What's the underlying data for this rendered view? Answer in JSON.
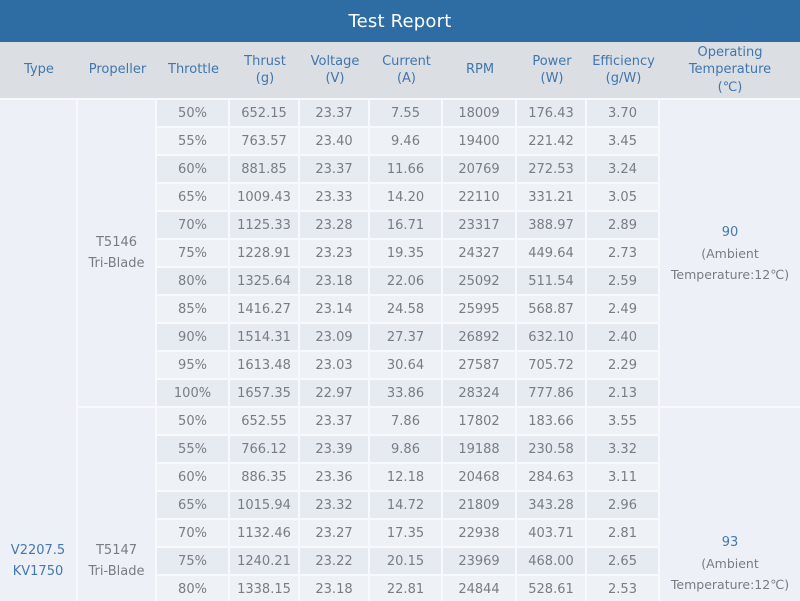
{
  "colors": {
    "title_bar_bg": "#2e6da4",
    "title_text": "#ffffff",
    "header_bg": "#dbdfe4",
    "header_text": "#4076ac",
    "row_dark": "#e6eaf1",
    "row_light": "#eef2f7",
    "merged_bg": "#edf0f6",
    "grid_line": "#f7f9fc",
    "value_text": "#797d83",
    "accent_text": "#4478b0"
  },
  "chart_data": {
    "type": "table",
    "title": "Test Report",
    "columns": [
      {
        "id": "type",
        "label": "Type"
      },
      {
        "id": "propeller",
        "label": "Propeller"
      },
      {
        "id": "throttle",
        "label": "Throttle"
      },
      {
        "id": "thrust",
        "label": "Thrust\n(g)"
      },
      {
        "id": "voltage",
        "label": "Voltage\n(V)"
      },
      {
        "id": "current",
        "label": "Current\n(A)"
      },
      {
        "id": "rpm",
        "label": "RPM"
      },
      {
        "id": "power",
        "label": "Power\n(W)"
      },
      {
        "id": "efficiency",
        "label": "Efficiency\n(g/W)"
      },
      {
        "id": "operating_temperature",
        "label": "Operating\nTemperature\n(℃)"
      }
    ],
    "motor_type": "V2207.5\nKV1750",
    "groups": [
      {
        "propeller": "T5146\nTri-Blade",
        "operating_temperature_value": "90",
        "operating_temperature_note": "(Ambient\nTemperature:12℃)",
        "rows": [
          [
            "50%",
            "652.15",
            "23.37",
            "7.55",
            "18009",
            "176.43",
            "3.70"
          ],
          [
            "55%",
            "763.57",
            "23.40",
            "9.46",
            "19400",
            "221.42",
            "3.45"
          ],
          [
            "60%",
            "881.85",
            "23.37",
            "11.66",
            "20769",
            "272.53",
            "3.24"
          ],
          [
            "65%",
            "1009.43",
            "23.33",
            "14.20",
            "22110",
            "331.21",
            "3.05"
          ],
          [
            "70%",
            "1125.33",
            "23.28",
            "16.71",
            "23317",
            "388.97",
            "2.89"
          ],
          [
            "75%",
            "1228.91",
            "23.23",
            "19.35",
            "24327",
            "449.64",
            "2.73"
          ],
          [
            "80%",
            "1325.64",
            "23.18",
            "22.06",
            "25092",
            "511.54",
            "2.59"
          ],
          [
            "85%",
            "1416.27",
            "23.14",
            "24.58",
            "25995",
            "568.87",
            "2.49"
          ],
          [
            "90%",
            "1514.31",
            "23.09",
            "27.37",
            "26892",
            "632.10",
            "2.40"
          ],
          [
            "95%",
            "1613.48",
            "23.03",
            "30.64",
            "27587",
            "705.72",
            "2.29"
          ],
          [
            "100%",
            "1657.35",
            "22.97",
            "33.86",
            "28324",
            "777.86",
            "2.13"
          ]
        ]
      },
      {
        "propeller": "T5147\nTri-Blade",
        "operating_temperature_value": "93",
        "operating_temperature_note": "(Ambient\nTemperature:12℃)",
        "rows": [
          [
            "50%",
            "652.55",
            "23.37",
            "7.86",
            "17802",
            "183.66",
            "3.55"
          ],
          [
            "55%",
            "766.12",
            "23.39",
            "9.86",
            "19188",
            "230.58",
            "3.32"
          ],
          [
            "60%",
            "886.35",
            "23.36",
            "12.18",
            "20468",
            "284.63",
            "3.11"
          ],
          [
            "65%",
            "1015.94",
            "23.32",
            "14.72",
            "21809",
            "343.28",
            "2.96"
          ],
          [
            "70%",
            "1132.46",
            "23.27",
            "17.35",
            "22938",
            "403.71",
            "2.81"
          ],
          [
            "75%",
            "1240.21",
            "23.22",
            "20.15",
            "23969",
            "468.00",
            "2.65"
          ],
          [
            "80%",
            "1338.15",
            "23.18",
            "22.81",
            "24844",
            "528.61",
            "2.53"
          ]
        ]
      }
    ]
  }
}
